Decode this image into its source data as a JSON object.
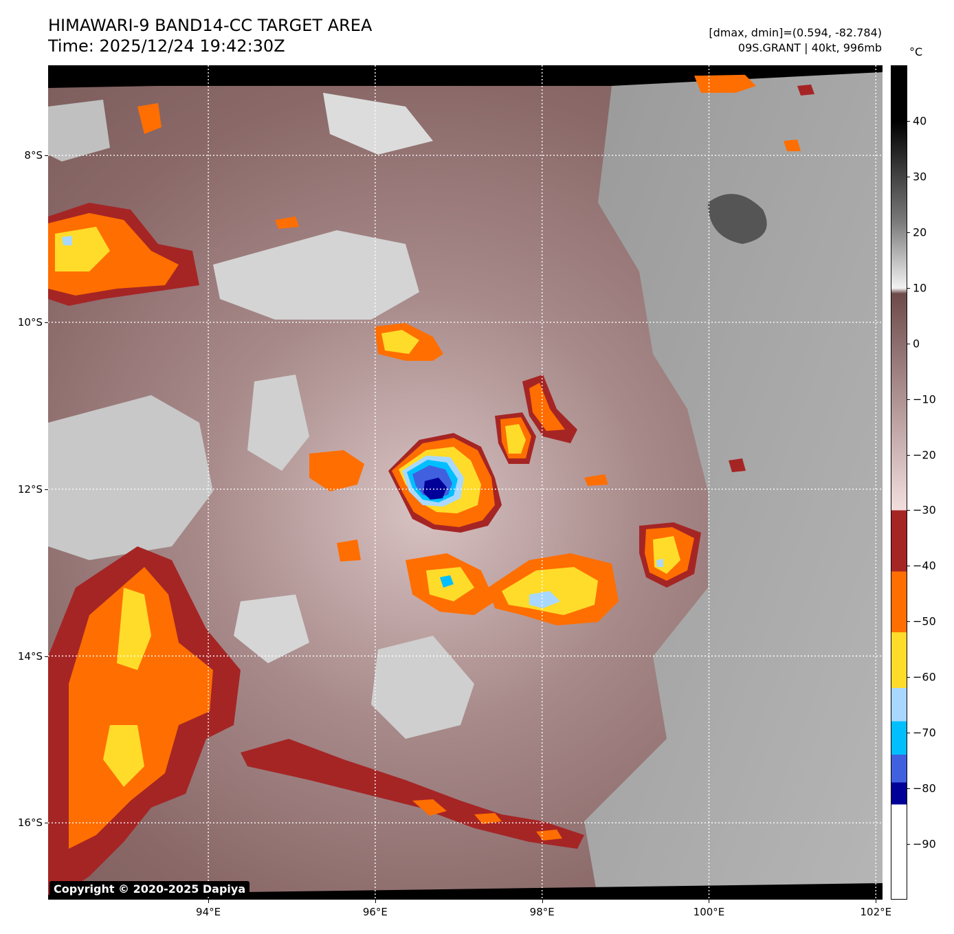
{
  "title": {
    "line1": "HIMAWARI-9 BAND14-CC TARGET AREA",
    "line2": "Time: 2025/12/24 19:42:30Z"
  },
  "info": {
    "line1": "[dmax, dmin]=(0.594, -82.784)",
    "line2": "09S.GRANT | 40kt, 996mb"
  },
  "colorbar": {
    "unit": "°C",
    "ticks": [
      "40",
      "30",
      "20",
      "10",
      "0",
      "−10",
      "−20",
      "−30",
      "−40",
      "−50",
      "−60",
      "−70",
      "−80",
      "−90"
    ],
    "tick_values": [
      40,
      30,
      20,
      10,
      0,
      -10,
      -20,
      -30,
      -40,
      -50,
      -60,
      -70,
      -80,
      -90
    ],
    "range": [
      -100,
      50
    ],
    "colors": {
      "gray_top": "#000000",
      "gray_mid": "#7a7a7a",
      "gray_low": "#f2f2f2",
      "brown_top": "#6e4b4b",
      "brown_low": "#f3dede",
      "dark_red": "#a52525",
      "orange": "#ff6e00",
      "yellow": "#ffdc2a",
      "light_blue": "#a8d8ff",
      "cyan": "#00bfff",
      "royal_blue": "#4060e0",
      "navy": "#000098",
      "white": "#ffffff"
    }
  },
  "map": {
    "x_ticks": [
      "94°E",
      "96°E",
      "98°E",
      "100°E",
      "102°E"
    ],
    "x_values": [
      94,
      96,
      98,
      100,
      102
    ],
    "y_ticks": [
      "8°S",
      "10°S",
      "12°S",
      "14°S",
      "16°S"
    ],
    "y_values": [
      -8,
      -10,
      -12,
      -14,
      -16
    ],
    "lon_range": [
      92.08,
      102.08
    ],
    "lat_range": [
      -16.92,
      -6.92
    ],
    "storm_center": {
      "lon": 96.7,
      "lat": -11.95
    }
  },
  "copyright": "Copyright © 2020-2025 Dapiya"
}
